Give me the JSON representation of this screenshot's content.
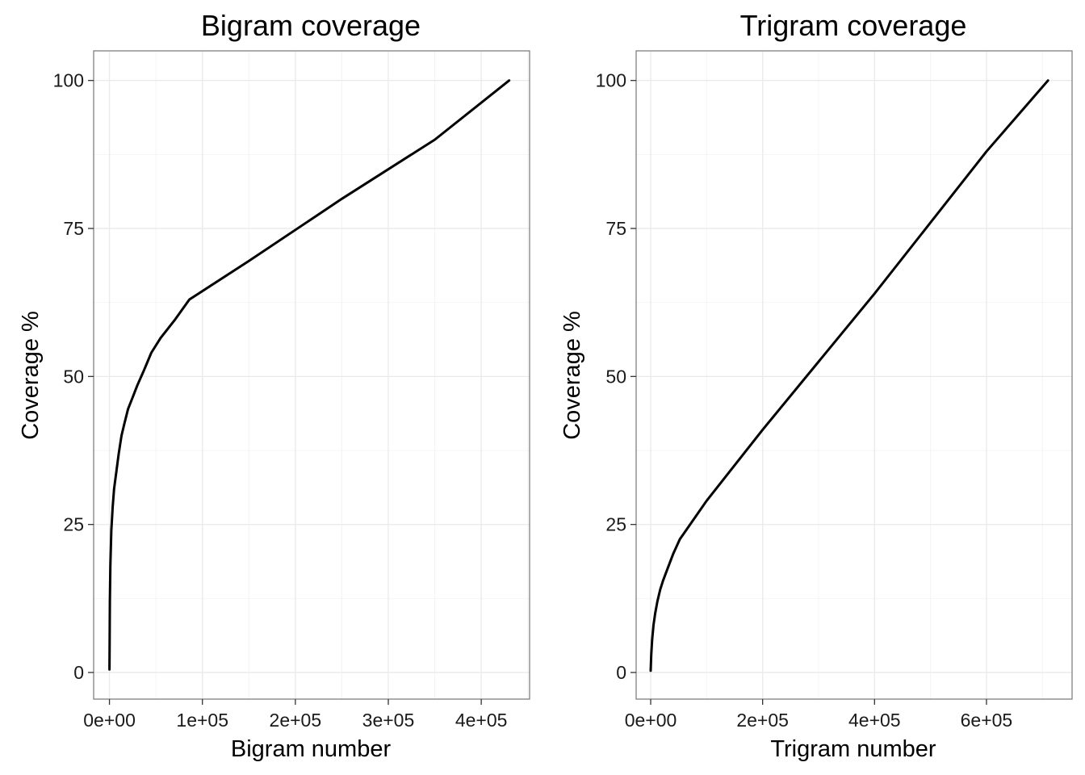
{
  "chart_data": [
    {
      "type": "line",
      "title": "Bigram coverage",
      "xlabel": "Bigram number",
      "ylabel": "Coverage %",
      "xlim": [
        -17000,
        452000
      ],
      "ylim": [
        -4.5,
        105
      ],
      "x_ticks": [
        0,
        100000,
        200000,
        300000,
        400000
      ],
      "x_tick_labels": [
        "0e+00",
        "1e+05",
        "2e+05",
        "3e+05",
        "4e+05"
      ],
      "y_ticks": [
        0,
        25,
        50,
        75,
        100
      ],
      "y_tick_labels": [
        "0",
        "25",
        "50",
        "75",
        "100"
      ],
      "grid": true,
      "legend": "none",
      "series": [
        {
          "color": "#000000",
          "x": [
            0,
            500,
            1000,
            2000,
            3500,
            5000,
            7500,
            10000,
            13000,
            16000,
            20000,
            25000,
            30000,
            37000,
            45000,
            55000,
            70000,
            86000,
            150000,
            250000,
            350000,
            430000
          ],
          "y": [
            0.5,
            12,
            18,
            24,
            28,
            31,
            34,
            37,
            40,
            42,
            44.5,
            46.5,
            48.5,
            51,
            54,
            56.5,
            59.5,
            63,
            69.5,
            80,
            90,
            100
          ]
        }
      ]
    },
    {
      "type": "line",
      "title": "Trigram coverage",
      "xlabel": "Trigram number",
      "ylabel": "Coverage %",
      "xlim": [
        -26000,
        753000
      ],
      "ylim": [
        -4.5,
        105
      ],
      "x_ticks": [
        0,
        200000,
        400000,
        600000
      ],
      "x_tick_labels": [
        "0e+00",
        "2e+05",
        "4e+05",
        "6e+05"
      ],
      "y_ticks": [
        0,
        25,
        50,
        75,
        100
      ],
      "y_tick_labels": [
        "0",
        "25",
        "50",
        "75",
        "100"
      ],
      "grid": true,
      "legend": "none",
      "series": [
        {
          "color": "#000000",
          "x": [
            0,
            1000,
            2500,
            5000,
            8000,
            12000,
            17000,
            22000,
            30000,
            40000,
            52000,
            100000,
            200000,
            300000,
            400000,
            500000,
            600000,
            710000
          ],
          "y": [
            0.3,
            3,
            5.5,
            8,
            10,
            12,
            14,
            15.5,
            17.5,
            20,
            22.5,
            29,
            41,
            52.5,
            64,
            76,
            88,
            100
          ]
        }
      ]
    }
  ]
}
